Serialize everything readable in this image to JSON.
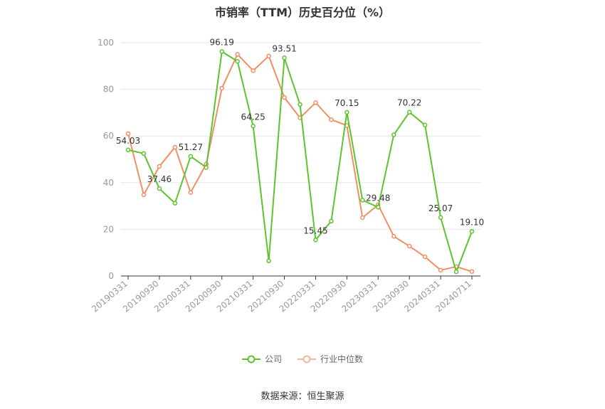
{
  "chart_data": {
    "type": "line",
    "title": "市销率（TTM）历史百分位（%）",
    "ylim": [
      0,
      100
    ],
    "yticks": [
      0,
      20,
      40,
      60,
      80,
      100
    ],
    "x_tick_labels": [
      "20190331",
      "20190930",
      "20200331",
      "20200930",
      "20210331",
      "20210930",
      "20220331",
      "20220930",
      "20230331",
      "20230930",
      "20240331",
      "20240711"
    ],
    "grid": true,
    "legend_position": "bottom-center",
    "series": [
      {
        "name": "公司",
        "color": "#5cc42f",
        "values": [
          54.03,
          52.5,
          37.46,
          31.2,
          51.27,
          46.5,
          96.19,
          92.0,
          64.25,
          6.5,
          93.51,
          73.5,
          15.45,
          23.5,
          70.15,
          32.5,
          29.48,
          60.5,
          70.22,
          64.7,
          25.07,
          1.8,
          19.1
        ],
        "labels": [
          "54.03",
          "",
          "37.46",
          "",
          "51.27",
          "",
          "96.19",
          "",
          "64.25",
          "",
          "93.51",
          "",
          "15.45",
          "",
          "70.15",
          "",
          "29.48",
          "",
          "70.22",
          "",
          "25.07",
          "",
          "19.10"
        ]
      },
      {
        "name": "行业中位数",
        "color": "#f28e63",
        "values": [
          61.0,
          34.8,
          47.0,
          55.2,
          35.8,
          48.0,
          80.5,
          95.0,
          88.0,
          94.3,
          76.5,
          67.8,
          74.3,
          67.0,
          64.5,
          25.0,
          30.5,
          17.0,
          12.8,
          8.2,
          2.5,
          4.0,
          1.9
        ]
      }
    ]
  },
  "source_text": "数据来源：恒生聚源"
}
